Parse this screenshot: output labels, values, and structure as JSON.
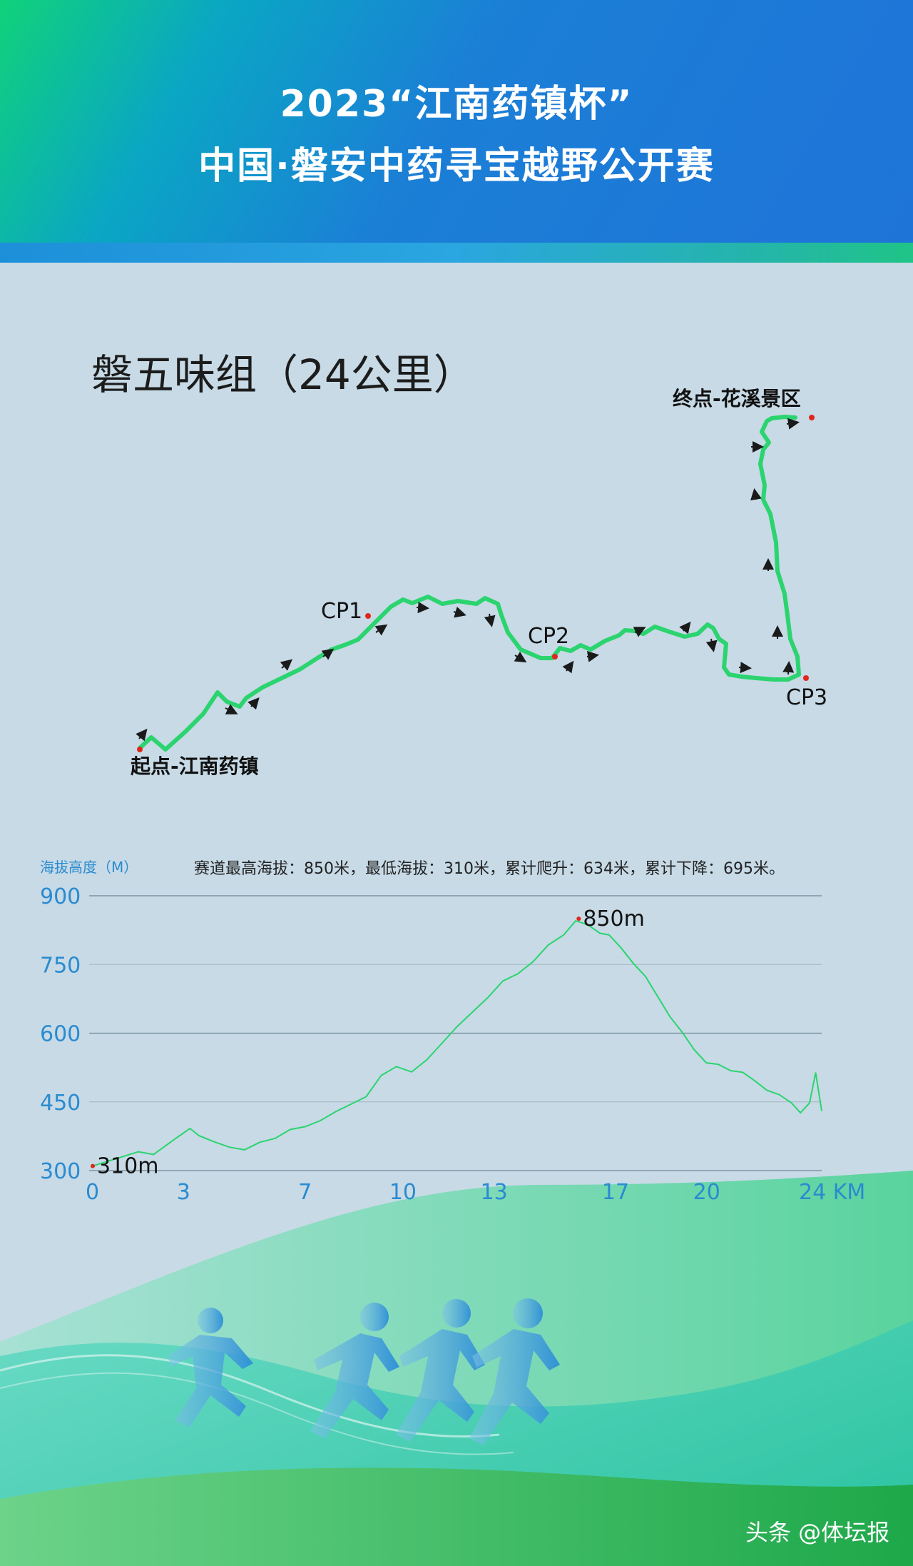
{
  "header": {
    "title_line1": "2023“江南药镇杯”",
    "title_line2": "中国·磐安中药寻宝越野公开赛"
  },
  "route_map": {
    "group_title": "磐五味组（24公里）",
    "start_label": "起点-江南药镇",
    "finish_label": "终点-花溪景区",
    "checkpoints": [
      "CP1",
      "CP2",
      "CP3"
    ],
    "route_color": "#2bd46f",
    "marker_color": "#e0261c"
  },
  "elevation": {
    "y_title": "海拔高度（M）",
    "summary": "赛道最高海拔：850米，最低海拔：310米，累计爬升：634米，累计下降：695米。",
    "max_label": "850m",
    "min_label": "310m",
    "axis_color": "#2a8bd0"
  },
  "chart_data": {
    "type": "line",
    "title": "",
    "xlabel": "KM",
    "ylabel": "海拔高度（M）",
    "xlim": [
      0,
      24
    ],
    "ylim": [
      300,
      900
    ],
    "x_ticks": [
      "0",
      "3",
      "7",
      "10",
      "13",
      "17",
      "20",
      "24 KM"
    ],
    "y_ticks": [
      "900",
      "750",
      "600",
      "450",
      "300"
    ],
    "grid": true,
    "series": [
      {
        "name": "",
        "x": [
          0,
          1.5,
          2,
          2.7,
          3.2,
          3.5,
          4,
          4.5,
          5,
          5.5,
          6,
          6.5,
          7,
          7.5,
          8,
          8.5,
          9,
          9.5,
          10,
          10.5,
          11,
          11.5,
          12,
          12.5,
          13,
          13.5,
          14,
          14.5,
          15,
          15.5,
          15.9,
          16.3,
          16.7,
          17,
          17.4,
          17.8,
          18.2,
          18.6,
          19,
          19.4,
          19.8,
          20.2,
          20.6,
          21,
          21.4,
          21.8,
          22.2,
          22.6,
          23,
          23.3,
          23.6,
          23.8,
          24
        ],
        "y": [
          310,
          340,
          338,
          365,
          392,
          380,
          360,
          352,
          350,
          360,
          372,
          385,
          395,
          412,
          425,
          445,
          465,
          505,
          528,
          520,
          540,
          580,
          610,
          645,
          680,
          710,
          730,
          760,
          790,
          815,
          850,
          835,
          820,
          810,
          785,
          755,
          720,
          680,
          640,
          600,
          565,
          540,
          530,
          520,
          510,
          495,
          478,
          462,
          448,
          430,
          445,
          515,
          430
        ]
      }
    ],
    "annotations": [
      {
        "x": 16,
        "y": 850,
        "text": "850m"
      },
      {
        "x": 0,
        "y": 310,
        "text": "310m"
      }
    ]
  }
}
